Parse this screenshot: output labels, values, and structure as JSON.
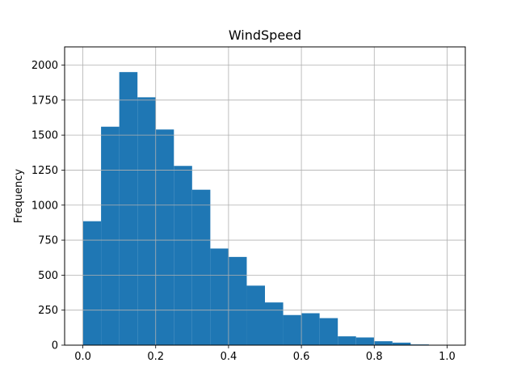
{
  "chart_data": {
    "type": "bar",
    "title": "WindSpeed",
    "xlabel": "",
    "ylabel": "Frequency",
    "bin_edges": [
      0.0,
      0.05,
      0.1,
      0.15,
      0.2,
      0.25,
      0.3,
      0.35,
      0.4,
      0.45,
      0.5,
      0.55,
      0.6,
      0.65,
      0.7,
      0.75,
      0.8,
      0.85,
      0.9,
      0.95,
      1.0
    ],
    "values": [
      885,
      1560,
      1950,
      1770,
      1540,
      1280,
      1110,
      690,
      630,
      425,
      305,
      215,
      228,
      193,
      63,
      55,
      28,
      18,
      5,
      1
    ],
    "xlim": [
      -0.05,
      1.05
    ],
    "ylim": [
      0,
      2130
    ],
    "x_ticks": [
      0.0,
      0.2,
      0.4,
      0.6,
      0.8,
      1.0
    ],
    "x_tick_labels": [
      "0.0",
      "0.2",
      "0.4",
      "0.6",
      "0.8",
      "1.0"
    ],
    "y_ticks": [
      0,
      250,
      500,
      750,
      1000,
      1250,
      1500,
      1750,
      2000
    ],
    "y_tick_labels": [
      "0",
      "250",
      "500",
      "750",
      "1000",
      "1250",
      "1500",
      "1750",
      "2000"
    ],
    "grid": true,
    "bar_color": "#1f77b4"
  }
}
